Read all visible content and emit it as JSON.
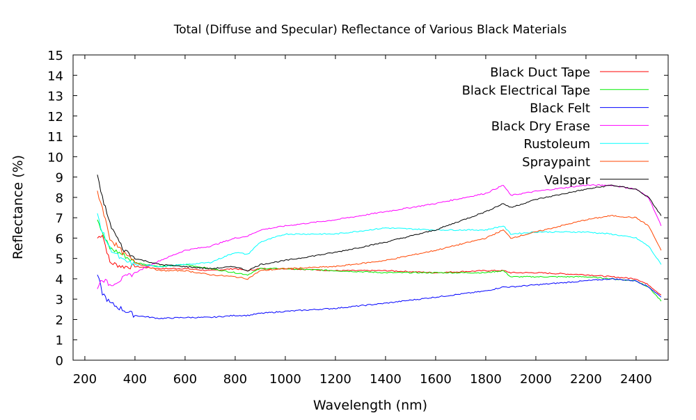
{
  "chart_data": {
    "type": "line",
    "title": "Total (Diffuse and Specular) Reflectance of Various Black Materials",
    "xlabel": "Wavelength (nm)",
    "ylabel": "Reflectance (%)",
    "xlim": [
      153,
      2528
    ],
    "ylim": [
      0,
      15
    ],
    "xticks": [
      200,
      400,
      600,
      800,
      1000,
      1200,
      1400,
      1600,
      1800,
      2000,
      2200,
      2400
    ],
    "yticks": [
      0,
      1,
      2,
      3,
      4,
      5,
      6,
      7,
      8,
      9,
      10,
      11,
      12,
      13,
      14,
      15
    ],
    "grid": false,
    "legend_position": "top-right",
    "x": [
      250,
      270,
      300,
      350,
      400,
      500,
      600,
      700,
      800,
      850,
      900,
      1000,
      1200,
      1400,
      1600,
      1800,
      1870,
      1900,
      2000,
      2200,
      2300,
      2400,
      2450,
      2500
    ],
    "series": [
      {
        "name": "Black Duct Tape",
        "color": "#ff0000",
        "values": [
          6.0,
          6.2,
          4.8,
          4.6,
          4.6,
          4.5,
          4.5,
          4.4,
          4.5,
          4.4,
          4.5,
          4.5,
          4.4,
          4.4,
          4.3,
          4.4,
          4.4,
          4.3,
          4.3,
          4.2,
          4.1,
          4.0,
          3.7,
          3.2
        ]
      },
      {
        "name": "Black Electrical Tape",
        "color": "#00ee00",
        "values": [
          7.0,
          6.2,
          5.5,
          5.2,
          4.8,
          4.6,
          4.7,
          4.5,
          4.3,
          4.2,
          4.5,
          4.5,
          4.4,
          4.3,
          4.3,
          4.3,
          4.4,
          4.1,
          4.1,
          4.1,
          4.0,
          3.9,
          3.6,
          2.9
        ]
      },
      {
        "name": "Black Felt",
        "color": "#0000ff",
        "values": [
          4.2,
          3.3,
          2.8,
          2.5,
          2.2,
          2.05,
          2.1,
          2.1,
          2.2,
          2.2,
          2.3,
          2.4,
          2.55,
          2.8,
          3.1,
          3.4,
          3.6,
          3.6,
          3.7,
          3.9,
          4.0,
          3.9,
          3.6,
          3.1
        ]
      },
      {
        "name": "Black Dry Erase",
        "color": "#ff00ff",
        "values": [
          3.6,
          4.0,
          3.7,
          4.0,
          4.3,
          4.9,
          5.4,
          5.6,
          6.0,
          6.1,
          6.4,
          6.6,
          6.9,
          7.3,
          7.7,
          8.2,
          8.6,
          8.1,
          8.3,
          8.6,
          8.6,
          8.4,
          8.0,
          6.6
        ]
      },
      {
        "name": "Rustoleum",
        "color": "#00ffff",
        "values": [
          7.2,
          6.3,
          5.5,
          4.9,
          4.7,
          4.6,
          4.7,
          4.8,
          5.3,
          5.2,
          5.8,
          6.2,
          6.2,
          6.5,
          6.4,
          6.4,
          6.6,
          6.2,
          6.3,
          6.3,
          6.2,
          6.0,
          5.6,
          4.7
        ]
      },
      {
        "name": "Spraypaint",
        "color": "#ff4500",
        "values": [
          8.3,
          7.5,
          6.0,
          5.3,
          4.8,
          4.4,
          4.4,
          4.2,
          4.1,
          4.0,
          4.4,
          4.5,
          4.6,
          4.9,
          5.4,
          6.0,
          6.4,
          6.0,
          6.3,
          6.9,
          7.1,
          7.0,
          6.6,
          5.4
        ]
      },
      {
        "name": "Valspar",
        "color": "#000000",
        "values": [
          9.0,
          8.0,
          6.7,
          5.5,
          5.0,
          4.7,
          4.6,
          4.5,
          4.6,
          4.4,
          4.7,
          4.9,
          5.3,
          5.8,
          6.4,
          7.3,
          7.7,
          7.5,
          7.9,
          8.4,
          8.6,
          8.4,
          8.0,
          7.1
        ]
      }
    ]
  }
}
